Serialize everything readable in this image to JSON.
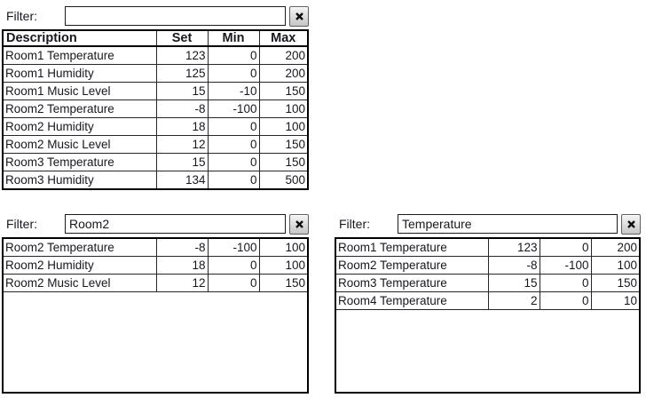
{
  "colors": {
    "background": "#ffffff",
    "text": "#17171f",
    "thick_border": "#000000",
    "grid_line": "#26262c",
    "button_face_top": "#f5f5f5",
    "button_face_bottom": "#c6c6c6",
    "button_border": "#5f5f5f"
  },
  "icons": {
    "clear": "close-icon"
  },
  "widgets": [
    {
      "filter": {
        "label": "Filter:",
        "value": ""
      },
      "columns": [
        "Description",
        "Set",
        "Min",
        "Max"
      ],
      "rows": [
        [
          "Room1 Temperature",
          "123",
          "0",
          "200"
        ],
        [
          "Room1 Humidity",
          "125",
          "0",
          "200"
        ],
        [
          "Room1 Music Level",
          "15",
          "-10",
          "150"
        ],
        [
          "Room2 Temperature",
          "-8",
          "-100",
          "100"
        ],
        [
          "Room2 Humidity",
          "18",
          "0",
          "100"
        ],
        [
          "Room2 Music Level",
          "12",
          "0",
          "150"
        ],
        [
          "Room3 Temperature",
          "15",
          "0",
          "150"
        ],
        [
          "Room3 Humidity",
          "134",
          "0",
          "500"
        ]
      ]
    },
    {
      "filter": {
        "label": "Filter:",
        "value": "Room2"
      },
      "rows": [
        [
          "Room2 Temperature",
          "-8",
          "-100",
          "100"
        ],
        [
          "Room2 Humidity",
          "18",
          "0",
          "100"
        ],
        [
          "Room2 Music Level",
          "12",
          "0",
          "150"
        ]
      ]
    },
    {
      "filter": {
        "label": "Filter:",
        "value": "Temperature"
      },
      "rows": [
        [
          "Room1 Temperature",
          "123",
          "0",
          "200"
        ],
        [
          "Room2 Temperature",
          "-8",
          "-100",
          "100"
        ],
        [
          "Room3 Temperature",
          "15",
          "0",
          "150"
        ],
        [
          "Room4 Temperature",
          "2",
          "0",
          "10"
        ]
      ]
    }
  ]
}
